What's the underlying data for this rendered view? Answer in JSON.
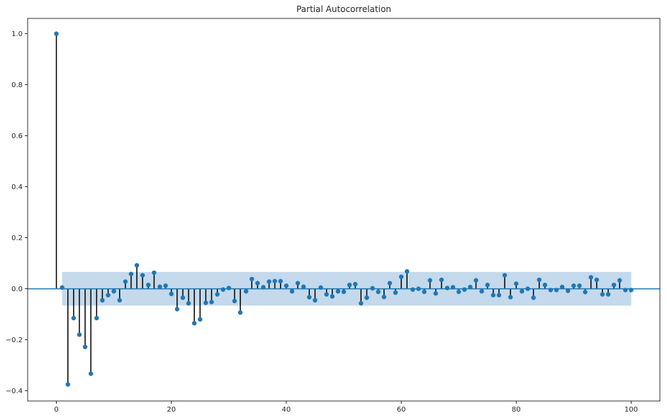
{
  "chart_data": {
    "type": "stem",
    "title": "Partial Autocorrelation",
    "xlabel": "",
    "ylabel": "",
    "xlim": [
      -5,
      105
    ],
    "ylim": [
      -0.44,
      1.06
    ],
    "xticks": [
      0,
      20,
      40,
      60,
      80,
      100
    ],
    "yticks": [
      -0.4,
      -0.2,
      0.0,
      0.2,
      0.4,
      0.6,
      0.8,
      1.0
    ],
    "ytick_labels": [
      "−0.4",
      "−0.2",
      "0.0",
      "0.2",
      "0.4",
      "0.6",
      "0.8",
      "1.0"
    ],
    "grid": false,
    "confidence_band": {
      "lower": -0.066,
      "upper": 0.066,
      "from_lag": 1,
      "to_lag": 100
    },
    "zero_line": 0.0,
    "colors": {
      "marker": "#1f77b4",
      "stem": "#000000",
      "band": "#c4d9ec",
      "zero_line": "#1f77b4"
    },
    "lags": [
      0,
      1,
      2,
      3,
      4,
      5,
      6,
      7,
      8,
      9,
      10,
      11,
      12,
      13,
      14,
      15,
      16,
      17,
      18,
      19,
      20,
      21,
      22,
      23,
      24,
      25,
      26,
      27,
      28,
      29,
      30,
      31,
      32,
      33,
      34,
      35,
      36,
      37,
      38,
      39,
      40,
      41,
      42,
      43,
      44,
      45,
      46,
      47,
      48,
      49,
      50,
      51,
      52,
      53,
      54,
      55,
      56,
      57,
      58,
      59,
      60,
      61,
      62,
      63,
      64,
      65,
      66,
      67,
      68,
      69,
      70,
      71,
      72,
      73,
      74,
      75,
      76,
      77,
      78,
      79,
      80,
      81,
      82,
      83,
      84,
      85,
      86,
      87,
      88,
      89,
      90,
      91,
      92,
      93,
      94,
      95,
      96,
      97,
      98,
      99,
      100
    ],
    "values": [
      1.0,
      0.005,
      -0.375,
      -0.115,
      -0.18,
      -0.228,
      -0.333,
      -0.115,
      -0.045,
      -0.025,
      -0.01,
      -0.045,
      0.028,
      0.058,
      0.092,
      0.053,
      0.015,
      0.063,
      0.008,
      0.012,
      -0.02,
      -0.08,
      -0.035,
      -0.057,
      -0.135,
      -0.12,
      -0.055,
      -0.052,
      -0.022,
      -0.003,
      0.003,
      -0.048,
      -0.093,
      -0.01,
      0.038,
      0.022,
      0.006,
      0.028,
      0.03,
      0.03,
      0.012,
      -0.01,
      0.022,
      0.008,
      -0.033,
      -0.045,
      0.005,
      -0.022,
      -0.03,
      -0.01,
      -0.012,
      0.015,
      0.018,
      -0.057,
      -0.035,
      0.002,
      -0.012,
      -0.032,
      0.022,
      -0.015,
      0.047,
      0.068,
      -0.003,
      0.0,
      -0.012,
      0.033,
      -0.018,
      0.035,
      0.003,
      0.006,
      -0.012,
      -0.003,
      0.007,
      0.033,
      -0.01,
      0.015,
      -0.025,
      -0.025,
      0.053,
      -0.033,
      0.02,
      -0.01,
      0.0,
      -0.035,
      0.035,
      0.015,
      -0.005,
      -0.005,
      0.007,
      -0.008,
      0.012,
      0.012,
      -0.013,
      0.045,
      0.035,
      -0.022,
      -0.022,
      0.015,
      0.033,
      -0.005,
      -0.005
    ]
  }
}
